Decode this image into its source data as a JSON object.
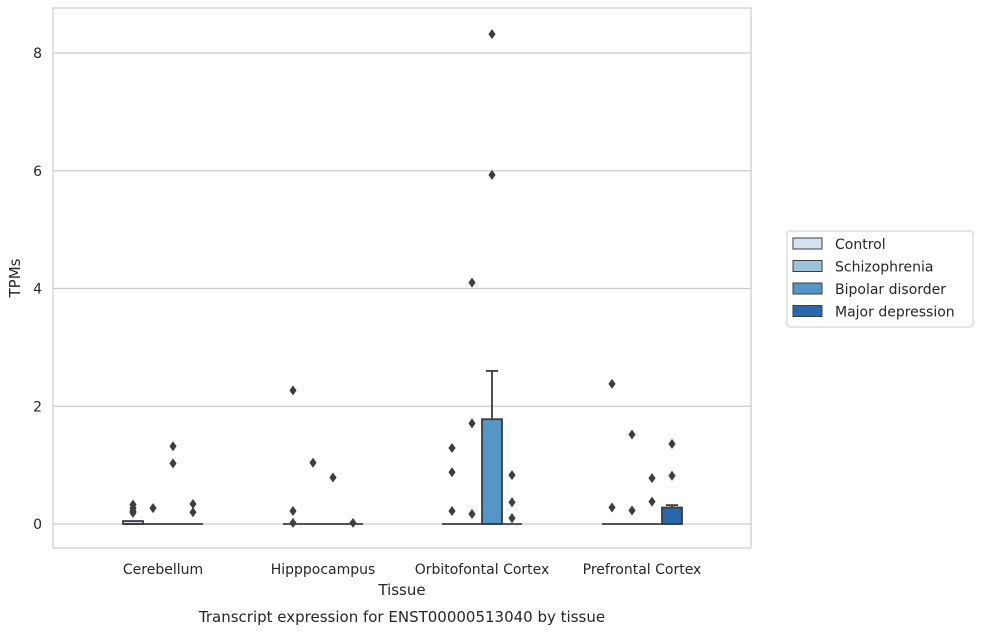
{
  "chart_data": {
    "type": "box",
    "xlabel": "Tissue",
    "ylabel": "TPMs",
    "caption": "Transcript expression for ENST00000513040 by tissue",
    "ylim": [
      -0.4,
      8.75
    ],
    "yticks": [
      0,
      2,
      4,
      6,
      8
    ],
    "grid": true,
    "legend_placement": "right",
    "categories": [
      "Cerebellum",
      "Hipppocampus",
      "Orbitofontal Cortex",
      "Prefrontal Cortex"
    ],
    "series": [
      {
        "name": "Control",
        "color": "#d4e2ef",
        "boxes": [
          {
            "q1": 0,
            "median": 0,
            "q3": 0.05,
            "whisker_low": 0,
            "whisker_high": 0.05,
            "outliers": [
              0.33,
              0.27,
              0.22,
              0.19
            ]
          },
          {
            "q1": 0,
            "median": 0,
            "q3": 0,
            "whisker_low": 0,
            "whisker_high": 0,
            "outliers": [
              2.27,
              0.22,
              0.02
            ]
          },
          {
            "q1": 0,
            "median": 0,
            "q3": 0,
            "whisker_low": 0,
            "whisker_high": 0,
            "outliers": [
              1.29,
              0.88,
              0.22
            ]
          },
          {
            "q1": 0,
            "median": 0,
            "q3": 0,
            "whisker_low": 0,
            "whisker_high": 0,
            "outliers": [
              2.38,
              0.28
            ]
          }
        ]
      },
      {
        "name": "Schizophrenia",
        "color": "#9cc3de",
        "boxes": [
          {
            "q1": 0,
            "median": 0,
            "q3": 0,
            "whisker_low": 0,
            "whisker_high": 0,
            "outliers": [
              0.27
            ]
          },
          {
            "q1": 0,
            "median": 0,
            "q3": 0,
            "whisker_low": 0,
            "whisker_high": 0,
            "outliers": [
              1.04
            ]
          },
          {
            "q1": 0,
            "median": 0,
            "q3": 0,
            "whisker_low": 0,
            "whisker_high": 0,
            "outliers": [
              4.1,
              1.71,
              0.17
            ]
          },
          {
            "q1": 0,
            "median": 0,
            "q3": 0,
            "whisker_low": 0,
            "whisker_high": 0,
            "outliers": [
              1.52,
              0.23
            ]
          }
        ]
      },
      {
        "name": "Bipolar disorder",
        "color": "#5497c7",
        "boxes": [
          {
            "q1": 0,
            "median": 0,
            "q3": 0,
            "whisker_low": 0,
            "whisker_high": 0,
            "outliers": [
              1.32,
              1.03
            ]
          },
          {
            "q1": 0,
            "median": 0,
            "q3": 0,
            "whisker_low": 0,
            "whisker_high": 0,
            "outliers": [
              0.79
            ]
          },
          {
            "q1": 0,
            "median": 0,
            "q3": 1.78,
            "whisker_low": 0,
            "whisker_high": 2.6,
            "outliers": [
              8.32,
              5.93
            ]
          },
          {
            "q1": 0,
            "median": 0,
            "q3": 0,
            "whisker_low": 0,
            "whisker_high": 0,
            "outliers": [
              0.78,
              0.38
            ]
          }
        ]
      },
      {
        "name": "Major depression",
        "color": "#2a67a8",
        "boxes": [
          {
            "q1": 0,
            "median": 0,
            "q3": 0,
            "whisker_low": 0,
            "whisker_high": 0,
            "outliers": [
              0.34,
              0.2
            ]
          },
          {
            "q1": 0,
            "median": 0,
            "q3": 0,
            "whisker_low": 0,
            "whisker_high": 0,
            "outliers": [
              0.02
            ]
          },
          {
            "q1": 0,
            "median": 0,
            "q3": 0,
            "whisker_low": 0,
            "whisker_high": 0,
            "outliers": [
              0.83,
              0.37,
              0.1
            ]
          },
          {
            "q1": 0,
            "median": 0,
            "q3": 0.28,
            "whisker_low": 0,
            "whisker_high": 0.32,
            "outliers": [
              1.36,
              0.82
            ]
          }
        ]
      }
    ]
  }
}
